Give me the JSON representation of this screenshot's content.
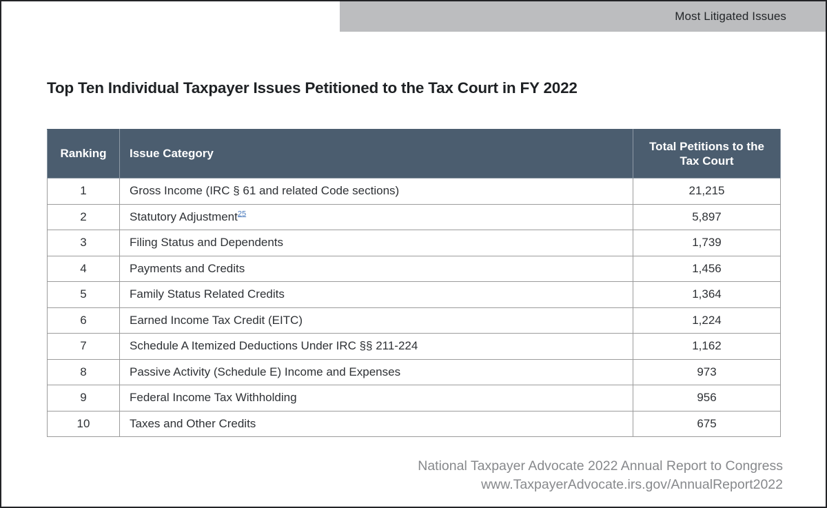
{
  "banner": {
    "label": "Most Litigated Issues"
  },
  "title": "Top Ten Individual Taxpayer Issues Petitioned to the Tax Court in FY 2022",
  "table": {
    "columns": {
      "ranking": "Ranking",
      "issue": "Issue Category",
      "total": "Total Petitions to the Tax Court"
    },
    "rows": [
      {
        "rank": "1",
        "issue": "Gross Income (IRC § 61 and related Code sections)",
        "footnote": null,
        "total": "21,215"
      },
      {
        "rank": "2",
        "issue": "Statutory Adjustment",
        "footnote": "25",
        "total": "5,897"
      },
      {
        "rank": "3",
        "issue": "Filing Status and Dependents",
        "footnote": null,
        "total": "1,739"
      },
      {
        "rank": "4",
        "issue": "Payments and Credits",
        "footnote": null,
        "total": "1,456"
      },
      {
        "rank": "5",
        "issue": "Family Status Related Credits",
        "footnote": null,
        "total": "1,364"
      },
      {
        "rank": "6",
        "issue": "Earned Income Tax Credit (EITC)",
        "footnote": null,
        "total": "1,224"
      },
      {
        "rank": "7",
        "issue": "Schedule A Itemized Deductions Under IRC §§ 211-224",
        "footnote": null,
        "total": "1,162"
      },
      {
        "rank": "8",
        "issue": "Passive Activity (Schedule E) Income and Expenses",
        "footnote": null,
        "total": "973"
      },
      {
        "rank": "9",
        "issue": "Federal Income Tax Withholding",
        "footnote": null,
        "total": "956"
      },
      {
        "rank": "10",
        "issue": "Taxes and Other Credits",
        "footnote": null,
        "total": "675"
      }
    ]
  },
  "footer": {
    "line1": "National Taxpayer Advocate 2022 Annual Report to Congress",
    "line2": "www.TaxpayerAdvocate.irs.gov/AnnualReport2022"
  },
  "colors": {
    "header_background": "#4b5d6f",
    "banner_background": "#bcbdbf",
    "footnote_link": "#4a7abc",
    "footer_text": "#87898c"
  }
}
